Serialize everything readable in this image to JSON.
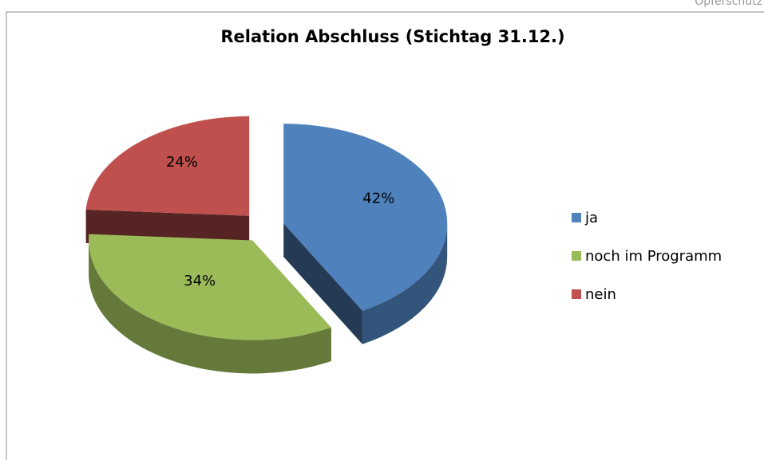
{
  "header": {
    "text": "Opferschutz"
  },
  "chart_data": {
    "type": "pie",
    "title": "Relation Abschluss (Stichtag 31.12.)",
    "categories": [
      "ja",
      "noch im Programm",
      "nein"
    ],
    "values": [
      42,
      34,
      24
    ],
    "value_labels": [
      "42%",
      "34%",
      "24%"
    ],
    "colors": [
      "#4f81bd",
      "#9bbb59",
      "#c0504d"
    ],
    "legend": "right"
  }
}
